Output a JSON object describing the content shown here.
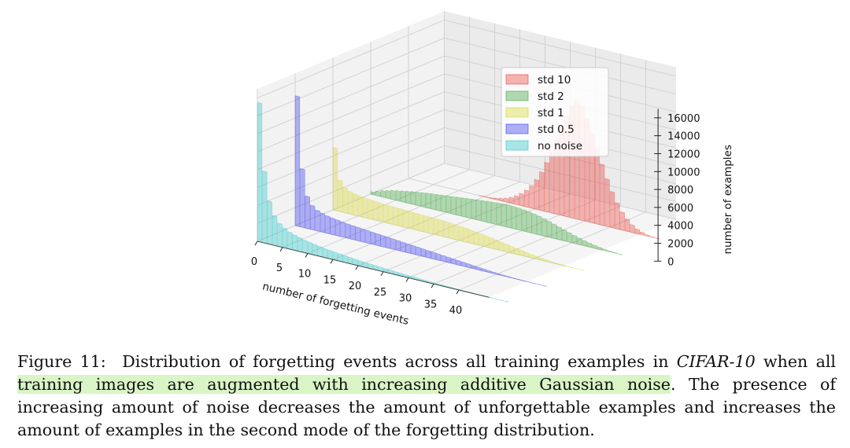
{
  "chart_data": {
    "type": "bar",
    "projection": "3d",
    "xlabel": "number of forgetting events",
    "zlabel": "number of examples",
    "x_ticks": [
      0,
      5,
      10,
      15,
      20,
      25,
      30,
      35,
      40
    ],
    "z_ticks": [
      0,
      2000,
      4000,
      6000,
      8000,
      10000,
      12000,
      14000,
      16000
    ],
    "zlim": [
      0,
      17000
    ],
    "grid": true,
    "legend_position": "top-right",
    "x": [
      0,
      1,
      2,
      3,
      4,
      5,
      6,
      7,
      8,
      9,
      10,
      11,
      12,
      13,
      14,
      15,
      16,
      17,
      18,
      19,
      20,
      21,
      22,
      23,
      24,
      25,
      26,
      27,
      28,
      29,
      30,
      31,
      32,
      33,
      34,
      35,
      36,
      37,
      38,
      39,
      40,
      41,
      42,
      43,
      44,
      45,
      46,
      47,
      48,
      49
    ],
    "series": [
      {
        "name": "no noise",
        "color": "#2ec4c6",
        "values": [
          15500,
          8000,
          4800,
          3300,
          2600,
          2200,
          1900,
          1700,
          1550,
          1400,
          1300,
          1200,
          1100,
          1000,
          950,
          880,
          820,
          760,
          700,
          650,
          600,
          560,
          520,
          480,
          440,
          400,
          370,
          340,
          310,
          280,
          250,
          220,
          200,
          180,
          160,
          140,
          120,
          100,
          85,
          70,
          60,
          50,
          40,
          32,
          25,
          20,
          15,
          10,
          6,
          3
        ]
      },
      {
        "name": "std 0.5",
        "color": "#3a3af0",
        "values": [
          14500,
          6500,
          3600,
          2700,
          2300,
          2100,
          1950,
          1850,
          1750,
          1680,
          1600,
          1550,
          1500,
          1450,
          1400,
          1350,
          1300,
          1250,
          1200,
          1150,
          1100,
          1050,
          1000,
          950,
          900,
          850,
          800,
          750,
          700,
          650,
          600,
          550,
          500,
          450,
          400,
          350,
          300,
          250,
          200,
          160,
          120,
          90,
          60,
          40,
          25,
          15,
          8,
          4,
          2,
          1
        ]
      },
      {
        "name": "std 1",
        "color": "#d6d63a",
        "values": [
          7000,
          3500,
          2800,
          2500,
          2350,
          2250,
          2200,
          2150,
          2100,
          2050,
          2000,
          1980,
          1960,
          1940,
          1920,
          1900,
          1880,
          1860,
          1840,
          1820,
          1800,
          1780,
          1750,
          1700,
          1650,
          1600,
          1550,
          1480,
          1400,
          1320,
          1240,
          1150,
          1050,
          950,
          850,
          750,
          650,
          560,
          470,
          390,
          310,
          240,
          180,
          130,
          90,
          60,
          35,
          20,
          10,
          5
        ]
      },
      {
        "name": "std 2",
        "color": "#3fa33f",
        "values": [
          300,
          500,
          700,
          850,
          1000,
          1100,
          1200,
          1300,
          1400,
          1480,
          1560,
          1640,
          1700,
          1760,
          1820,
          1880,
          1940,
          2000,
          2060,
          2120,
          2180,
          2240,
          2300,
          2360,
          2400,
          2440,
          2480,
          2500,
          2480,
          2440,
          2380,
          2300,
          2200,
          2080,
          1940,
          1780,
          1600,
          1420,
          1240,
          1060,
          880,
          720,
          570,
          440,
          330,
          240,
          170,
          110,
          60,
          30
        ]
      },
      {
        "name": "std 10",
        "color": "#e8453c",
        "values": [
          0,
          0,
          0,
          0,
          0,
          0,
          0,
          0,
          0,
          0,
          0,
          0,
          0,
          0,
          20,
          40,
          80,
          150,
          260,
          420,
          650,
          950,
          1350,
          1850,
          2500,
          3300,
          4300,
          5500,
          6900,
          8300,
          9700,
          11200,
          12500,
          13200,
          12700,
          11500,
          10000,
          8400,
          6800,
          5300,
          4000,
          2900,
          2000,
          1350,
          850,
          500,
          280,
          140,
          60,
          20
        ]
      }
    ]
  },
  "caption": {
    "figure_label": "Figure 11:",
    "text_before_dataset": "Distribution of forgetting events across all training examples in",
    "dataset_name": "CIFAR-10",
    "text_before_highlight": "when all",
    "highlighted_text": "training images are augmented with increasing additive Gaussian noise",
    "text_after_highlight": ". The presence of increasing amount of noise decreases the amount of unforgettable examples and increases the amount of examples in the second mode of the forgetting distribution."
  }
}
